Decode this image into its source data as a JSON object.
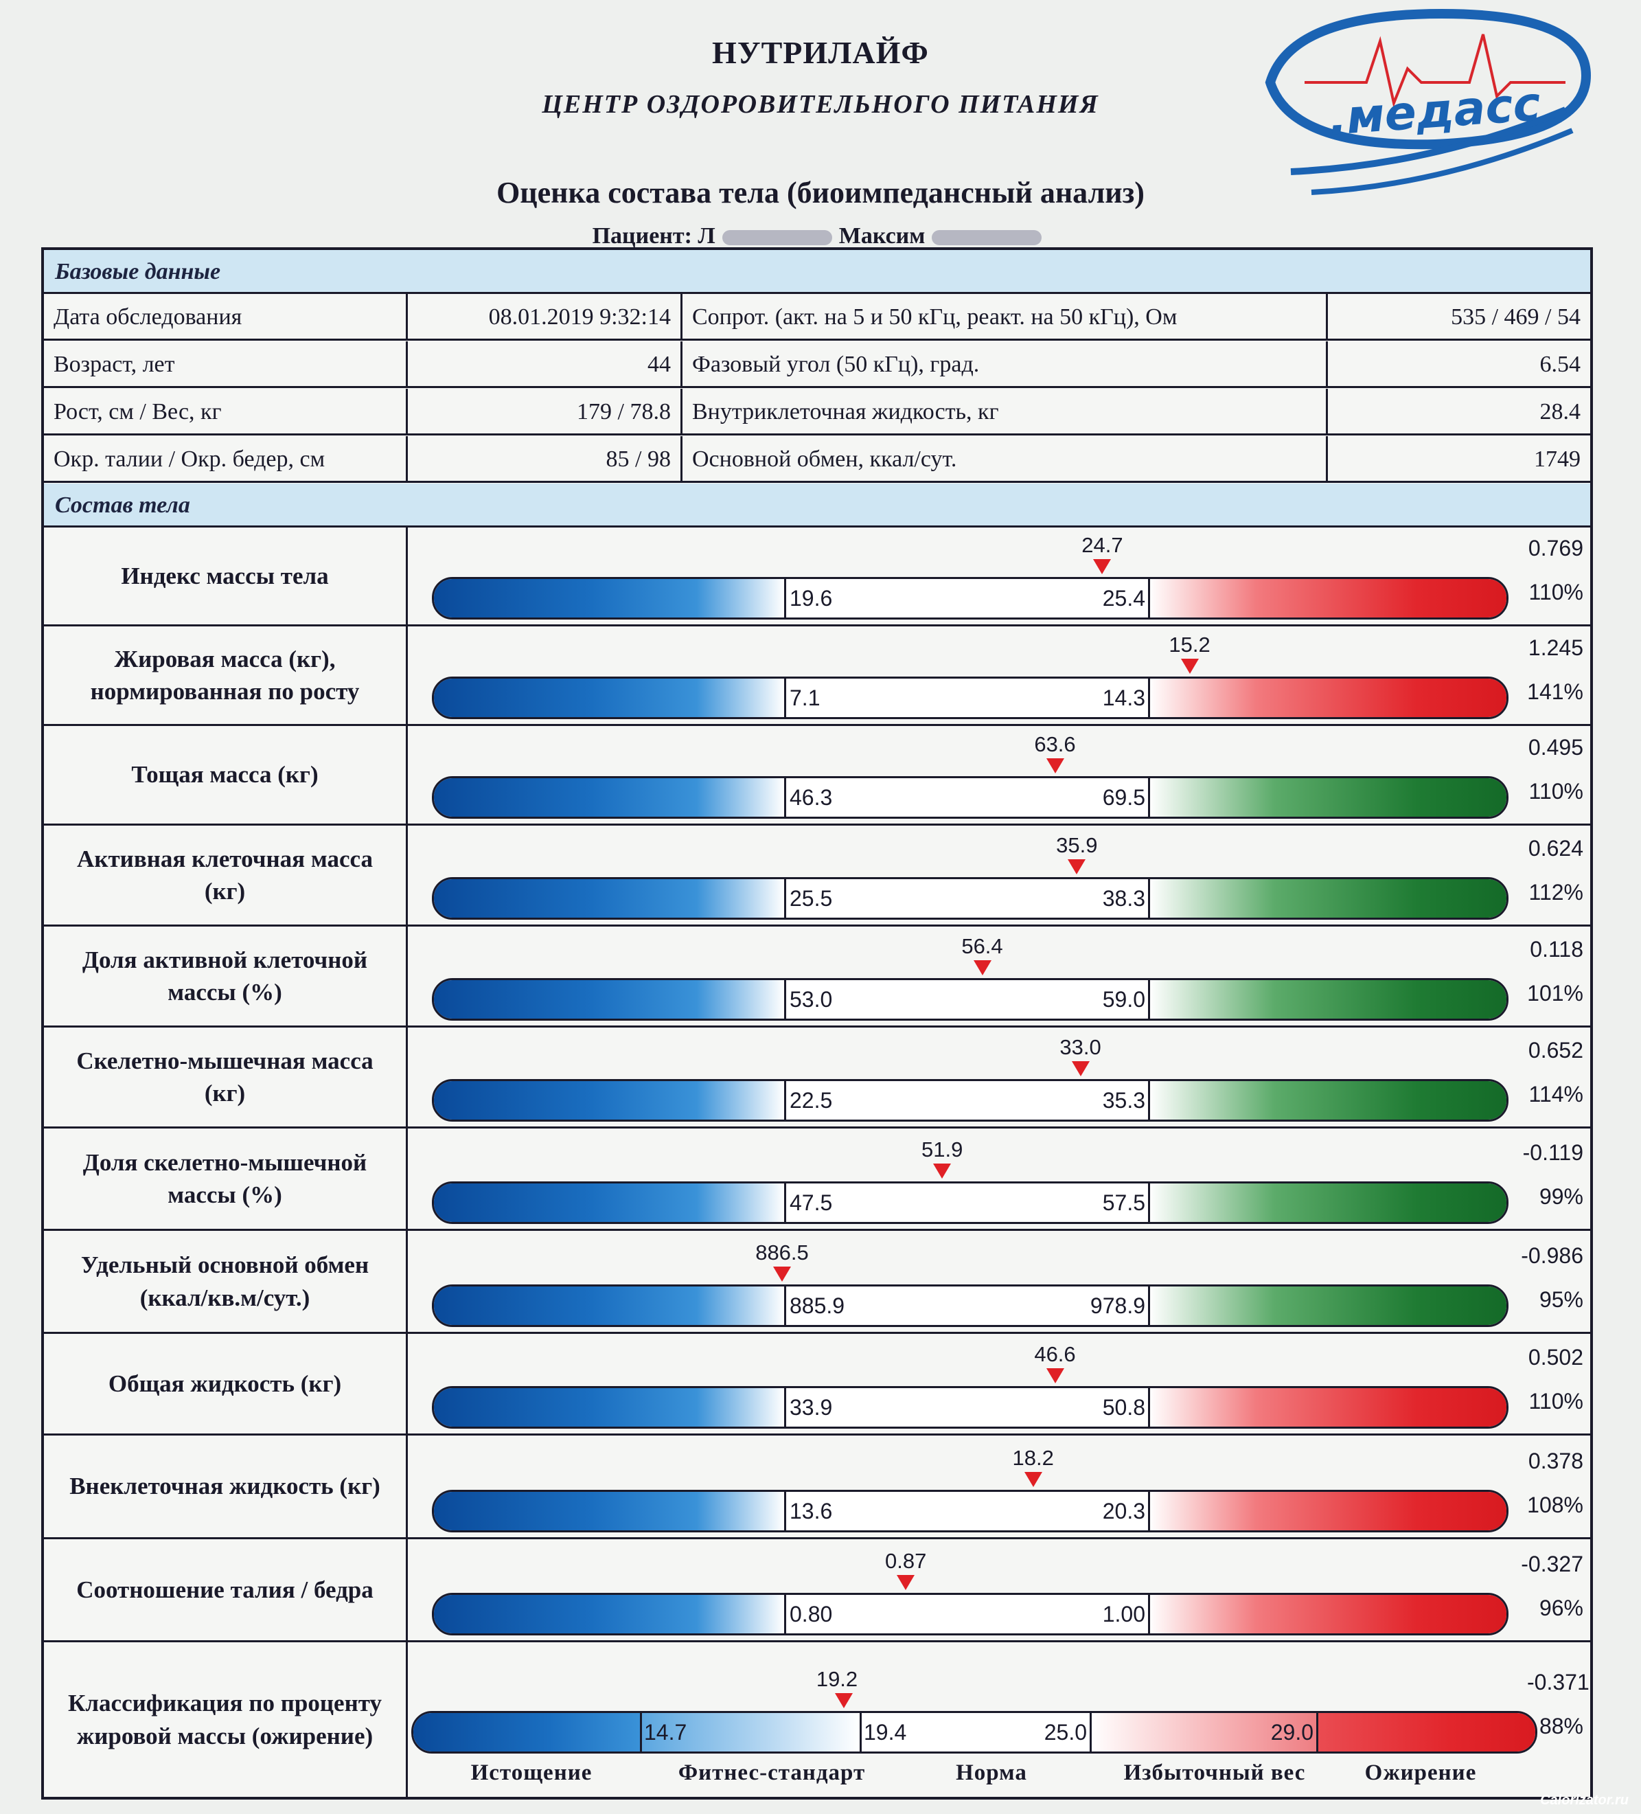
{
  "header": {
    "org_name": "НУТРИЛАЙФ",
    "org_subtitle": "ЦЕНТР ОЗДОРОВИТЕЛЬНОГО ПИТАНИЯ",
    "logo_text": ".медасс",
    "title": "Оценка состава тела (биоимпедансный анализ)",
    "patient_label": "Пациент: Л",
    "patient_name": "Максим"
  },
  "base": {
    "section_title": "Базовые данные",
    "rows": [
      {
        "label": "Дата обследования",
        "value": "08.01.2019 9:32:14",
        "label2": "Сопрот. (акт. на 5 и 50 кГц, реакт. на 50 кГц), Ом",
        "value2": "535 / 469 / 54"
      },
      {
        "label": "Возраст, лет",
        "value": "44",
        "label2": "Фазовый угол (50 кГц), град.",
        "value2": "6.54"
      },
      {
        "label": "Рост, см / Вес, кг",
        "value": "179 / 78.8",
        "label2": "Внутриклеточная жидкость, кг",
        "value2": "28.4"
      },
      {
        "label": "Окр. талии / Окр. бедер, см",
        "value": "85 / 98",
        "label2": "Основной обмен, ккал/сут.",
        "value2": "1749"
      }
    ]
  },
  "composition": {
    "section_title": "Состав тела",
    "rows": [
      {
        "label": "Индекс массы тела",
        "low": "19.6",
        "high": "25.4",
        "value": "24.7",
        "marker_pos": 0.88,
        "score": "0.769",
        "percent": "110%",
        "right_color": "red"
      },
      {
        "label": "Жировая масса (кг), нормированная по росту",
        "low": "7.1",
        "high": "14.3",
        "value": "15.2",
        "marker_pos": 1.12,
        "score": "1.245",
        "percent": "141%",
        "right_color": "red"
      },
      {
        "label": "Тощая масса (кг)",
        "low": "46.3",
        "high": "69.5",
        "value": "63.6",
        "marker_pos": 0.75,
        "score": "0.495",
        "percent": "110%",
        "right_color": "green"
      },
      {
        "label": "Активная клеточная масса (кг)",
        "low": "25.5",
        "high": "38.3",
        "value": "35.9",
        "marker_pos": 0.81,
        "score": "0.624",
        "percent": "112%",
        "right_color": "green"
      },
      {
        "label": "Доля активной клеточной массы (%)",
        "low": "53.0",
        "high": "59.0",
        "value": "56.4",
        "marker_pos": 0.55,
        "score": "0.118",
        "percent": "101%",
        "right_color": "green"
      },
      {
        "label": "Скелетно-мышечная масса (кг)",
        "low": "22.5",
        "high": "35.3",
        "value": "33.0",
        "marker_pos": 0.82,
        "score": "0.652",
        "percent": "114%",
        "right_color": "green"
      },
      {
        "label": "Доля скелетно-мышечной массы (%)",
        "low": "47.5",
        "high": "57.5",
        "value": "51.9",
        "marker_pos": 0.44,
        "score": "-0.119",
        "percent": "99%",
        "right_color": "green"
      },
      {
        "label": "Удельный основной обмен (ккал/кв.м/сут.)",
        "low": "885.9",
        "high": "978.9",
        "value": "886.5",
        "marker_pos": 0.0,
        "score": "-0.986",
        "percent": "95%",
        "right_color": "green"
      },
      {
        "label": "Общая жидкость (кг)",
        "low": "33.9",
        "high": "50.8",
        "value": "46.6",
        "marker_pos": 0.75,
        "score": "0.502",
        "percent": "110%",
        "right_color": "red"
      },
      {
        "label": "Внеклеточная жидкость (кг)",
        "low": "13.6",
        "high": "20.3",
        "value": "18.2",
        "marker_pos": 0.69,
        "score": "0.378",
        "percent": "108%",
        "right_color": "red"
      },
      {
        "label": "Соотношение талия / бедра",
        "low": "0.80",
        "high": "1.00",
        "value": "0.87",
        "marker_pos": 0.34,
        "score": "-0.327",
        "percent": "96%",
        "right_color": "red"
      }
    ]
  },
  "classification": {
    "label": "Классификация по проценту жировой массы (ожирение)",
    "thresholds": [
      "14.7",
      "19.4",
      "25.0",
      "29.0"
    ],
    "value": "19.2",
    "score": "-0.371",
    "percent": "88%",
    "categories": [
      "Истощение",
      "Фитнес-стандарт",
      "Норма",
      "Избыточный вес",
      "Ожирение"
    ]
  },
  "watermark": "Calorizator.ru",
  "colors": {
    "blue": "#1a6ec0",
    "red": "#e2262c",
    "green": "#1f7b33",
    "marker": "#e02025",
    "section_head": "#cfe6f3"
  }
}
